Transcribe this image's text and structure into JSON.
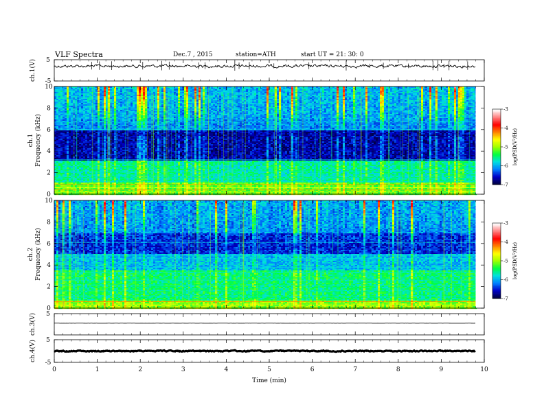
{
  "header": {
    "title": "VLF  Spectra",
    "date": "Dec.7  , 2015",
    "station": "station=ATH",
    "start": "start  UT  =   21: 30: 0"
  },
  "chart_data": {
    "type": "heatmap",
    "xlabel": "Time  (min)",
    "xlim": [
      0,
      10
    ],
    "xticks": [
      0,
      1,
      2,
      3,
      4,
      5,
      6,
      7,
      8,
      9,
      10
    ],
    "data_end_min": 9.8,
    "panels": [
      {
        "id": "ch1-wave",
        "type": "line",
        "ylabel": "ch.1(V)",
        "ylim": [
          -5,
          5
        ],
        "yticks": [
          -5,
          5
        ],
        "baseline": 2.0,
        "color": "#000000"
      },
      {
        "id": "ch1-spec",
        "type": "heatmap",
        "ylabel1": "ch.1",
        "ylabel2": "Frequency  (kHz)",
        "ylim": [
          0,
          10
        ],
        "yticks": [
          0,
          2,
          4,
          6,
          8,
          10
        ]
      },
      {
        "id": "ch2-spec",
        "type": "heatmap",
        "ylabel1": "ch.2",
        "ylabel2": "Frequency  (kHz)",
        "ylim": [
          0,
          10
        ],
        "yticks": [
          0,
          2,
          4,
          6,
          8,
          10
        ]
      },
      {
        "id": "ch3-wave",
        "type": "line",
        "ylabel": "ch.3(V)",
        "ylim": [
          -5,
          5
        ],
        "yticks": [
          5
        ],
        "baseline": 0.5,
        "color": "#000000"
      },
      {
        "id": "ch4-wave",
        "type": "line",
        "ylabel": "ch.4(V)",
        "ylim": [
          -5,
          5
        ],
        "yticks": [
          -5,
          5
        ],
        "baseline": 0.0,
        "color": "#000000"
      }
    ],
    "colorbar": {
      "label": "log(PSD(V²/Hz)",
      "range": [
        -7,
        -3
      ],
      "ticks": [
        -7,
        -6,
        -5,
        -4,
        -3
      ],
      "colors": [
        "#000040",
        "#0000c8",
        "#0080ff",
        "#00e0e0",
        "#00ff40",
        "#a0ff00",
        "#ffff00",
        "#ff8000",
        "#ff0000",
        "#ff8080",
        "#ffffff"
      ]
    }
  }
}
